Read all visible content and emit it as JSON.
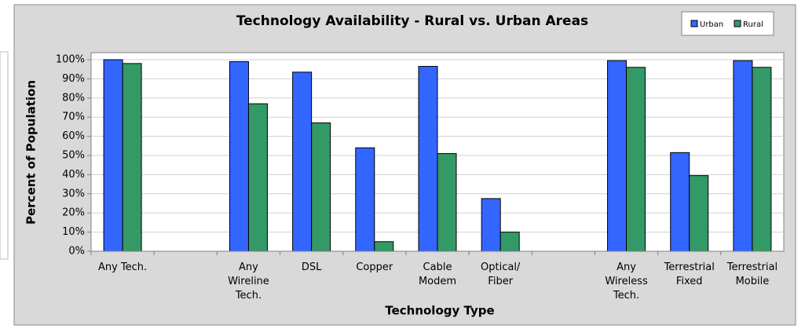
{
  "chart_data": {
    "type": "bar",
    "title": "Technology Availability - Rural vs. Urban Areas",
    "x_label": "Technology Type",
    "y_label": "Percent of Population",
    "categories": [
      "Any Tech.",
      null,
      "Any\nWireline\nTech.",
      "DSL",
      "Copper",
      "Cable\nModem",
      "Optical/\nFiber",
      null,
      "Any\nWireless\nTech.",
      "Terrestrial\nFixed",
      "Terrestrial\nMobile"
    ],
    "series": [
      {
        "name": "Urban",
        "color": "#3366ff",
        "values": [
          100,
          null,
          99,
          93.5,
          54,
          96.5,
          27.5,
          null,
          99.5,
          51.5,
          99.5
        ]
      },
      {
        "name": "Rural",
        "color": "#339966",
        "values": [
          98,
          null,
          77,
          67,
          5,
          51,
          10,
          null,
          96,
          39.5,
          96
        ]
      }
    ],
    "ylim": [
      0,
      100
    ],
    "yticks": [
      {
        "value": 0,
        "label": "0%"
      },
      {
        "value": 10,
        "label": "10%"
      },
      {
        "value": 20,
        "label": "20%"
      },
      {
        "value": 30,
        "label": "30%"
      },
      {
        "value": 40,
        "label": "40%"
      },
      {
        "value": 50,
        "label": "50%"
      },
      {
        "value": 60,
        "label": "60%"
      },
      {
        "value": 70,
        "label": "70%"
      },
      {
        "value": 80,
        "label": "80%"
      },
      {
        "value": 90,
        "label": "90%"
      },
      {
        "value": 100,
        "label": "100%"
      }
    ],
    "grid": true,
    "legend": "top-right"
  }
}
